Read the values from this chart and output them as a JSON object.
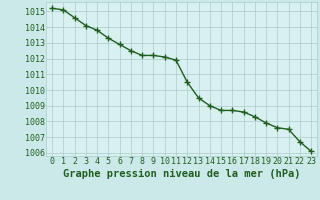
{
  "x": [
    0,
    1,
    2,
    3,
    4,
    5,
    6,
    7,
    8,
    9,
    10,
    11,
    12,
    13,
    14,
    15,
    16,
    17,
    18,
    19,
    20,
    21,
    22,
    23
  ],
  "y": [
    1015.2,
    1015.1,
    1014.6,
    1014.1,
    1013.8,
    1013.3,
    1012.9,
    1012.5,
    1012.2,
    1012.2,
    1012.1,
    1011.9,
    1010.5,
    1009.5,
    1009.0,
    1008.7,
    1008.7,
    1008.6,
    1008.3,
    1007.9,
    1007.6,
    1007.5,
    1006.7,
    1006.1
  ],
  "line_color": "#1f5e1f",
  "marker_color": "#1f5e1f",
  "bg_color": "#cce9e9",
  "plot_bg_color": "#d9f0f0",
  "grid_color": "#aacccc",
  "xlabel": "Graphe pression niveau de la mer (hPa)",
  "xtick_labels": [
    "0",
    "1",
    "2",
    "3",
    "4",
    "5",
    "6",
    "7",
    "8",
    "9",
    "10",
    "11",
    "12",
    "13",
    "14",
    "15",
    "16",
    "17",
    "18",
    "19",
    "20",
    "21",
    "22",
    "23"
  ],
  "ylim": [
    1005.8,
    1015.6
  ],
  "yticks": [
    1006,
    1007,
    1008,
    1009,
    1010,
    1011,
    1012,
    1013,
    1014,
    1015
  ],
  "tick_color": "#1f5e1f",
  "xlabel_fontsize": 7.5,
  "tick_fontsize": 6,
  "line_width": 1.0,
  "marker_size": 4.5
}
